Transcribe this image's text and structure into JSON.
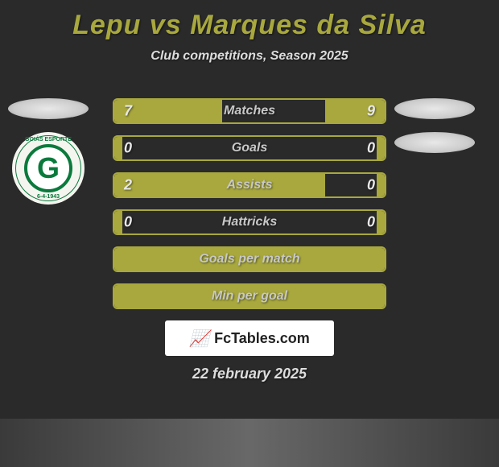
{
  "title": "Lepu vs Marques da Silva",
  "subtitle": "Club competitions, Season 2025",
  "date": "22 february 2025",
  "watermark": {
    "icon": "📈",
    "text": "FcTables.com"
  },
  "club_badge": {
    "letter": "G",
    "top_text": "GOIÁS ESPORTE",
    "bottom_text": "6-4-1943"
  },
  "colors": {
    "accent": "#a8a83e",
    "bg": "#2a2a2a",
    "text_light": "#e8e8e8",
    "text_muted": "#c8c8c8"
  },
  "bars": [
    {
      "label": "Matches",
      "left_value": "7",
      "right_value": "9",
      "left_pct": 40,
      "right_pct": 22
    },
    {
      "label": "Goals",
      "left_value": "0",
      "right_value": "0",
      "left_pct": 3,
      "right_pct": 3
    },
    {
      "label": "Assists",
      "left_value": "2",
      "right_value": "0",
      "left_pct": 78,
      "right_pct": 3
    },
    {
      "label": "Hattricks",
      "left_value": "0",
      "right_value": "0",
      "left_pct": 3,
      "right_pct": 3
    },
    {
      "label": "Goals per match",
      "left_value": "",
      "right_value": "",
      "left_pct": 100,
      "right_pct": 0,
      "full": true
    },
    {
      "label": "Min per goal",
      "left_value": "",
      "right_value": "",
      "left_pct": 100,
      "right_pct": 0,
      "full": true
    }
  ]
}
